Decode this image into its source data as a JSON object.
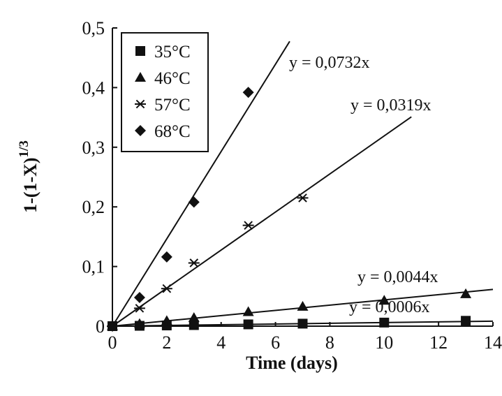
{
  "chart_data": {
    "type": "scatter",
    "xlabel": "Time (days)",
    "ylabel": "1-(1-X)",
    "ylabel_superscript": "1/3",
    "xlim": [
      0,
      14
    ],
    "ylim": [
      0,
      0.5
    ],
    "x_ticks": [
      0,
      2,
      4,
      6,
      8,
      10,
      12,
      14
    ],
    "x_tick_labels": [
      "0",
      "2",
      "4",
      "6",
      "8",
      "10",
      "12",
      "14"
    ],
    "y_ticks": [
      0,
      0.1,
      0.2,
      0.3,
      0.4,
      0.5
    ],
    "y_tick_labels": [
      "0",
      "0,1",
      "0,2",
      "0,3",
      "0,4",
      "0,5"
    ],
    "grid": false,
    "legend_position": "top-left",
    "series": [
      {
        "name": "35°C",
        "marker": "square",
        "slope": 0.0006,
        "equation": "y = 0,0006x",
        "x": [
          0,
          1,
          2,
          3,
          5,
          7,
          10,
          13
        ],
        "y": [
          0,
          0.0006,
          0.0012,
          0.0018,
          0.003,
          0.0042,
          0.006,
          0.009
        ]
      },
      {
        "name": "46°C",
        "marker": "triangle",
        "slope": 0.0044,
        "equation": "y = 0,0044x",
        "x": [
          0,
          1,
          2,
          3,
          5,
          7,
          10,
          13
        ],
        "y": [
          0,
          0.004,
          0.009,
          0.014,
          0.024,
          0.033,
          0.043,
          0.054
        ]
      },
      {
        "name": "57°C",
        "marker": "asterisk",
        "slope": 0.0319,
        "equation": "y = 0,0319x",
        "x": [
          0,
          1,
          2,
          3,
          5,
          7
        ],
        "y": [
          0,
          0.03,
          0.063,
          0.106,
          0.169,
          0.215
        ]
      },
      {
        "name": "68°C",
        "marker": "diamond",
        "slope": 0.0732,
        "equation": "y = 0,0732x",
        "x": [
          0,
          1,
          2,
          3,
          5
        ],
        "y": [
          0,
          0.048,
          0.116,
          0.208,
          0.392
        ]
      }
    ]
  }
}
